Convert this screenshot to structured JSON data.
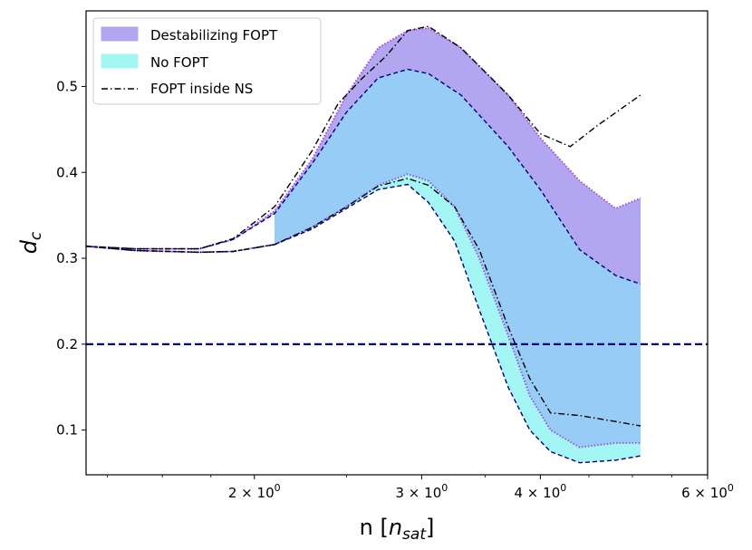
{
  "chart_data": {
    "type": "area",
    "x_scale": "log",
    "xlabel_main": "n [",
    "xlabel_sub_n": "n",
    "xlabel_sub_sat": "sat",
    "xlabel_close": "]",
    "ylabel_main": "d",
    "ylabel_sub": "c",
    "xlim": [
      1.33,
      6.0
    ],
    "ylim": [
      0.048,
      0.588
    ],
    "x_ticks": [
      {
        "value": 2,
        "mantissa": "2",
        "base": "10",
        "exp": "0"
      },
      {
        "value": 3,
        "mantissa": "3",
        "base": "10",
        "exp": "0"
      },
      {
        "value": 4,
        "mantissa": "4",
        "base": "10",
        "exp": "0"
      },
      {
        "value": 6,
        "mantissa": "6",
        "base": "10",
        "exp": "0"
      }
    ],
    "y_ticks": [
      {
        "value": 0.1,
        "label": "0.1"
      },
      {
        "value": 0.2,
        "label": "0.2"
      },
      {
        "value": 0.3,
        "label": "0.3"
      },
      {
        "value": 0.4,
        "label": "0.4"
      },
      {
        "value": 0.5,
        "label": "0.5"
      }
    ],
    "hline": {
      "y": 0.2,
      "color": "#00007f"
    },
    "legend": {
      "placement": "top-left",
      "entries": [
        {
          "label": "Destabilizing FOPT",
          "kind": "patch",
          "color": "#b3a6f0"
        },
        {
          "label": "No FOPT",
          "kind": "patch",
          "color": "#a3f6f3"
        },
        {
          "label": "FOPT inside NS",
          "kind": "line",
          "color": "#000000"
        }
      ]
    },
    "series": [
      {
        "name": "Destabilizing FOPT",
        "role": "band",
        "fill": "#b3a6f0",
        "upper_line": {
          "color": "#a64dd6",
          "style": "dotted"
        },
        "lower_line": {
          "color": "#000080",
          "style": "dashed"
        },
        "x": [
          1.33,
          1.5,
          1.75,
          1.9,
          2.1,
          2.3,
          2.5,
          2.7,
          2.9,
          3.05,
          3.3,
          3.7,
          4.0,
          4.4,
          4.8,
          5.1
        ],
        "upper": [
          0.314,
          0.311,
          0.311,
          0.322,
          0.355,
          0.415,
          0.49,
          0.545,
          0.565,
          0.568,
          0.545,
          0.49,
          0.44,
          0.39,
          0.358,
          0.37
        ],
        "lower": [
          0.314,
          0.311,
          0.311,
          0.322,
          0.352,
          0.41,
          0.47,
          0.51,
          0.52,
          0.515,
          0.49,
          0.43,
          0.38,
          0.31,
          0.28,
          0.27
        ]
      },
      {
        "name": "No FOPT",
        "role": "band",
        "fill": "#a3f6f3",
        "upper_line": {
          "color": "#a64dd6",
          "style": "dotted"
        },
        "lower_line": {
          "color": "#000080",
          "style": "dashed"
        },
        "x": [
          1.33,
          1.5,
          1.75,
          1.9,
          2.1,
          2.3,
          2.5,
          2.7,
          2.9,
          3.05,
          3.25,
          3.45,
          3.7,
          3.9,
          4.1,
          4.4,
          4.8,
          5.1
        ],
        "upper": [
          0.314,
          0.309,
          0.307,
          0.308,
          0.316,
          0.336,
          0.36,
          0.385,
          0.398,
          0.39,
          0.36,
          0.3,
          0.21,
          0.14,
          0.1,
          0.08,
          0.085,
          0.085
        ],
        "lower": [
          0.314,
          0.309,
          0.307,
          0.308,
          0.316,
          0.334,
          0.358,
          0.38,
          0.386,
          0.365,
          0.32,
          0.24,
          0.15,
          0.1,
          0.075,
          0.062,
          0.065,
          0.07
        ]
      },
      {
        "name": "FOPT inside NS (upper)",
        "role": "line",
        "color": "#000000",
        "style": "dashdot",
        "x": [
          1.33,
          1.5,
          1.75,
          1.9,
          2.1,
          2.3,
          2.45,
          2.6,
          2.75,
          2.9,
          3.05,
          3.3,
          3.7,
          4.0,
          4.3,
          4.6,
          5.1
        ],
        "y": [
          0.314,
          0.311,
          0.311,
          0.323,
          0.36,
          0.425,
          0.48,
          0.51,
          0.535,
          0.565,
          0.57,
          0.545,
          0.49,
          0.445,
          0.43,
          0.455,
          0.49
        ]
      },
      {
        "name": "FOPT inside NS (lower)",
        "role": "line",
        "color": "#000000",
        "style": "dashdot",
        "x": [
          1.33,
          1.5,
          1.75,
          1.9,
          2.1,
          2.3,
          2.5,
          2.7,
          2.9,
          3.05,
          3.25,
          3.45,
          3.7,
          3.9,
          4.1,
          4.4,
          4.8,
          5.1
        ],
        "y": [
          0.314,
          0.309,
          0.307,
          0.308,
          0.316,
          0.336,
          0.36,
          0.384,
          0.393,
          0.385,
          0.36,
          0.31,
          0.22,
          0.16,
          0.12,
          0.117,
          0.11,
          0.105
        ]
      }
    ]
  }
}
